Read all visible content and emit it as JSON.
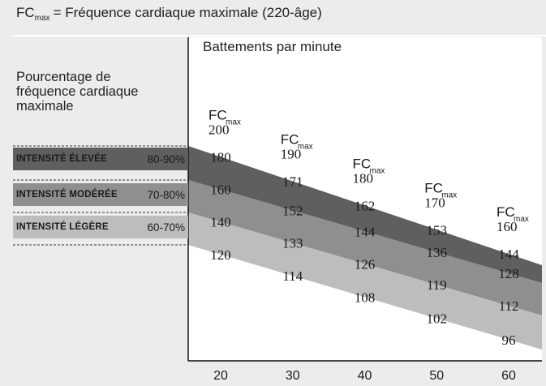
{
  "header": {
    "fc": "FC",
    "fc_sub": "max",
    "formula": "= Fréquence cardiaque maximale (220-âge)"
  },
  "left_label": {
    "line1": "Pourcentage de",
    "line2": "fréquence cardiaque",
    "line3": "maximale"
  },
  "y_caption": "Battements par minute",
  "bands": [
    {
      "name": "INTENSITÉ ÉLEVÉE",
      "pct": "80-90%",
      "color": "#5f5f5f"
    },
    {
      "name": "INTENSITÉ MODÉRÉE",
      "pct": "70-80%",
      "color": "#8f8f8f"
    },
    {
      "name": "INTENSITÉ LÉGÈRE",
      "pct": "60-70%",
      "color": "#bdbdbd"
    }
  ],
  "chart_data": {
    "type": "area",
    "title": "Battements par minute",
    "x": [
      20,
      30,
      40,
      50,
      60
    ],
    "x_tick_labels": [
      "20",
      "30",
      "40",
      "50",
      "60"
    ],
    "fc_max": {
      "label": "FC",
      "sub": "max",
      "values": [
        200,
        190,
        180,
        170,
        160
      ]
    },
    "series": [
      {
        "name": "90%",
        "values": [
          180,
          171,
          162,
          153,
          144
        ]
      },
      {
        "name": "80%",
        "values": [
          160,
          152,
          144,
          136,
          128
        ]
      },
      {
        "name": "70%",
        "values": [
          140,
          133,
          126,
          119,
          112
        ]
      },
      {
        "name": "60%",
        "values": [
          120,
          114,
          108,
          102,
          96
        ]
      }
    ]
  }
}
